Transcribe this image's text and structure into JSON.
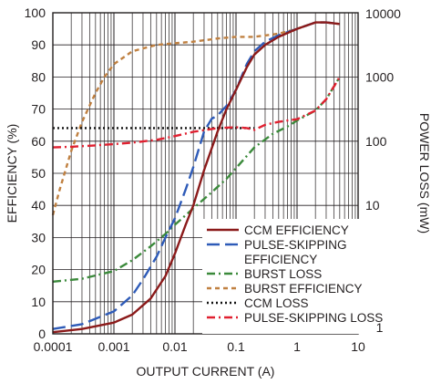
{
  "chart_data": {
    "type": "line",
    "xlabel": "OUTPUT CURRENT (A)",
    "ylabel_left": "EFFICIENCY (%)",
    "ylabel_right": "POWER LOSS (mW)",
    "x_scale": "log",
    "xlim": [
      0.0001,
      10
    ],
    "ylim_left": [
      0,
      100
    ],
    "ylim_right": [
      0.1,
      10000
    ],
    "y_right_scale": "log",
    "grid": true,
    "legend_position": "bottom-right",
    "x_ticks": [
      "0.0001",
      "0.001",
      "0.01",
      "0.1",
      "1",
      "10"
    ],
    "y_left_ticks": [
      "0",
      "10",
      "20",
      "30",
      "40",
      "50",
      "60",
      "70",
      "80",
      "90",
      "100"
    ],
    "y_right_ticks": [
      "0.1",
      "1",
      "10",
      "100",
      "1000",
      "10000"
    ],
    "series": [
      {
        "name": "CCM EFFICIENCY",
        "axis": "left",
        "color": "#8b1a1a",
        "dash": "solid",
        "x": [
          0.0001,
          0.0003,
          0.001,
          0.002,
          0.004,
          0.007,
          0.01,
          0.015,
          0.02,
          0.03,
          0.05,
          0.07,
          0.1,
          0.15,
          0.2,
          0.3,
          0.5,
          1,
          2,
          3,
          5
        ],
        "y": [
          0.5,
          1.5,
          3.5,
          6,
          11,
          18,
          25,
          34,
          40,
          51,
          63,
          70,
          76,
          83,
          87,
          90,
          92.5,
          95,
          97,
          97,
          96.5
        ]
      },
      {
        "name": "PULSE-SKIPPING EFFICIENCY",
        "axis": "left",
        "color": "#2e5bb8",
        "dash": "longdash",
        "x": [
          0.0001,
          0.0003,
          0.001,
          0.002,
          0.003,
          0.005,
          0.007,
          0.01,
          0.015,
          0.02,
          0.03,
          0.04,
          0.05,
          0.07,
          0.1,
          0.15,
          0.2,
          0.3,
          0.5,
          1,
          2,
          3,
          5
        ],
        "y": [
          1.5,
          3,
          7,
          12,
          17,
          24,
          30,
          36,
          45,
          52,
          63,
          67,
          68,
          71,
          76,
          84,
          88,
          91,
          93,
          95,
          97,
          97,
          96.5
        ]
      },
      {
        "name": "BURST LOSS",
        "axis": "right",
        "color": "#3b8a3b",
        "dash": "dashdot",
        "x": [
          0.0001,
          0.0003,
          0.001,
          0.002,
          0.004,
          0.007,
          0.01,
          0.02,
          0.04,
          0.07,
          0.1,
          0.2,
          0.4,
          0.7,
          1,
          2,
          3,
          5
        ],
        "y": [
          0.65,
          0.72,
          0.95,
          1.4,
          2.3,
          3.6,
          5,
          9,
          16,
          26,
          38,
          80,
          130,
          170,
          210,
          300,
          450,
          1000
        ]
      },
      {
        "name": "BURST EFFICIENCY",
        "axis": "left",
        "color": "#c08040",
        "dash": "shortdash",
        "x": [
          0.0001,
          0.00013,
          0.0002,
          0.0003,
          0.0005,
          0.0007,
          0.001,
          0.002,
          0.005,
          0.01,
          0.02,
          0.05,
          0.1,
          0.2,
          0.5,
          1,
          2,
          3,
          5
        ],
        "y": [
          37,
          45,
          57,
          66,
          75,
          80,
          84,
          88,
          90,
          90.5,
          91,
          92,
          92.5,
          92.5,
          93.5,
          95,
          97,
          97,
          96.5
        ]
      },
      {
        "name": "CCM LOSS",
        "axis": "right",
        "color": "#111111",
        "dash": "dotted",
        "x": [
          0.0001,
          0.001,
          0.01,
          0.1,
          0.2
        ],
        "y": [
          160,
          160,
          160,
          160,
          160
        ]
      },
      {
        "name": "PULSE-SKIPPING LOSS",
        "axis": "right",
        "color": "#e02030",
        "dash": "dashdot",
        "x": [
          0.0001,
          0.0002,
          0.0005,
          0.001,
          0.002,
          0.005,
          0.01,
          0.02,
          0.05,
          0.1,
          0.15,
          0.2,
          0.3,
          0.5,
          0.7,
          1,
          2,
          3,
          5
        ],
        "y": [
          80,
          82,
          86,
          90,
          95,
          105,
          120,
          140,
          160,
          165,
          160,
          150,
          180,
          200,
          210,
          220,
          300,
          450,
          1000
        ]
      }
    ]
  }
}
